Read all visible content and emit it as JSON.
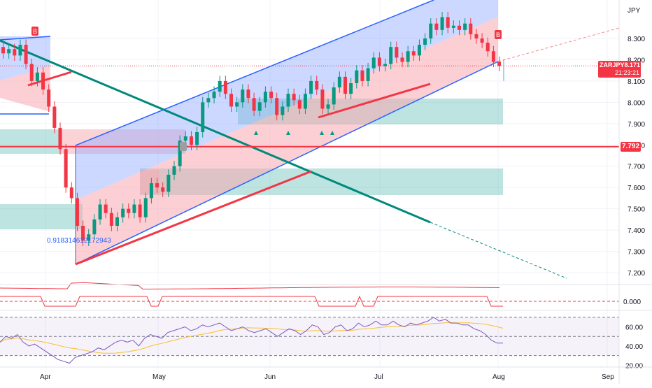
{
  "instrument": {
    "symbol": "ZARJPY",
    "currency": "JPY",
    "last_price": "8.171",
    "countdown": "21:23:21",
    "marked_level": "7.792"
  },
  "annotations": {
    "fib_value": "0.918314612172943",
    "signal_b_label": "B"
  },
  "colors": {
    "up": "#089981",
    "down": "#f23645",
    "channel_blue": "#2962ff",
    "teal_line": "#00897b",
    "red_line": "#f23645",
    "zone_teal": "#26a69a",
    "rsi_line": "#7e57c2",
    "rsi_ma": "#fbc02d"
  },
  "chart_data": [
    {
      "type": "candlestick",
      "title": "ZARJPY",
      "ylabel": "JPY",
      "y_ticks": [
        "8.300",
        "8.200",
        "8.100",
        "8.000",
        "7.900",
        "7.800",
        "7.700",
        "7.600",
        "7.500",
        "7.400",
        "7.300",
        "7.200"
      ],
      "x_ticks": [
        "Apr",
        "May",
        "Jun",
        "Jul",
        "Aug",
        "Sep"
      ],
      "ylim": [
        7.13,
        8.5
      ],
      "last_price": 8.171,
      "horizontal_level": 7.792,
      "series_close": [
        8.23,
        8.25,
        8.22,
        8.27,
        8.18,
        8.1,
        8.14,
        8.06,
        7.98,
        7.88,
        7.78,
        7.6,
        7.55,
        7.42,
        7.35,
        7.38,
        7.45,
        7.52,
        7.48,
        7.42,
        7.46,
        7.5,
        7.48,
        7.52,
        7.46,
        7.55,
        7.62,
        7.6,
        7.58,
        7.66,
        7.7,
        7.82,
        7.84,
        7.8,
        7.86,
        8.0,
        8.02,
        8.05,
        8.1,
        8.04,
        7.98,
        8.0,
        8.06,
        8.02,
        7.96,
        8.0,
        8.05,
        8.02,
        7.94,
        7.98,
        8.04,
        8.01,
        7.97,
        8.04,
        8.1,
        8.06,
        7.97,
        7.99,
        8.07,
        8.12,
        8.04,
        8.09,
        8.15,
        8.1,
        8.16,
        8.21,
        8.17,
        8.18,
        8.26,
        8.21,
        8.19,
        8.24,
        8.22,
        8.27,
        8.3,
        8.37,
        8.34,
        8.4,
        8.35,
        8.36,
        8.34,
        8.37,
        8.32,
        8.3,
        8.28,
        8.24,
        8.19,
        8.171
      ],
      "rsi": {
        "y_ticks": [
          "60.00",
          "40.00",
          "20.00"
        ],
        "levels": [
          70,
          50,
          30
        ],
        "ylim": [
          18,
          75
        ],
        "values": [
          44,
          50,
          48,
          52,
          44,
          40,
          42,
          38,
          34,
          30,
          26,
          24,
          22,
          28,
          30,
          32,
          34,
          38,
          36,
          40,
          44,
          46,
          44,
          46,
          40,
          48,
          52,
          50,
          48,
          54,
          56,
          58,
          60,
          56,
          58,
          62,
          60,
          62,
          64,
          60,
          56,
          58,
          60,
          56,
          54,
          56,
          58,
          54,
          50,
          54,
          58,
          56,
          52,
          56,
          62,
          60,
          52,
          54,
          60,
          62,
          56,
          58,
          64,
          60,
          62,
          66,
          62,
          62,
          66,
          62,
          60,
          64,
          62,
          64,
          66,
          70,
          66,
          68,
          64,
          64,
          62,
          62,
          58,
          56,
          52,
          46,
          43,
          43
        ]
      },
      "oscillator": {
        "y_ticks": [
          "0.000"
        ]
      }
    }
  ]
}
